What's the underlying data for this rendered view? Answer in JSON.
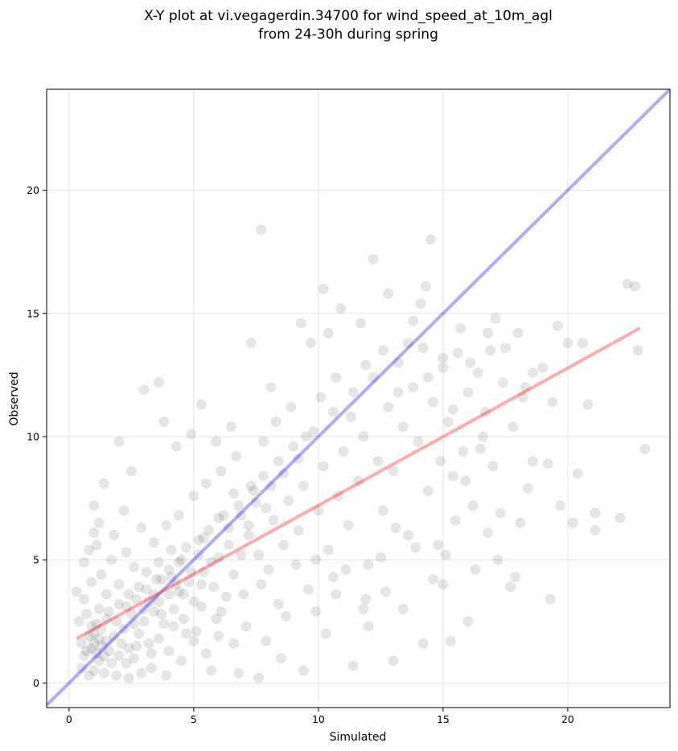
{
  "chart_data": {
    "type": "scatter",
    "title_lines": [
      "X-Y plot at vi.vegagerdin.34700 for wind_speed_at_10m_agl",
      "from 24-30h during spring"
    ],
    "xlabel": "Simulated",
    "ylabel": "Observed",
    "xlim": [
      -0.9,
      24.1
    ],
    "ylim": [
      -1.0,
      24.1
    ],
    "xticks": [
      0,
      5,
      10,
      15,
      20
    ],
    "yticks": [
      0,
      5,
      10,
      15,
      20
    ],
    "grid": true,
    "colors": {
      "points": "#000000",
      "one_to_one": "#0000ff",
      "regression": "#ff0000"
    },
    "points": [
      [
        0.9,
        1.4
      ],
      [
        1.0,
        1.6
      ],
      [
        1.1,
        1.2
      ],
      [
        1.2,
        1.8
      ],
      [
        1.3,
        1.5
      ],
      [
        1.0,
        2.0
      ],
      [
        1.4,
        1.1
      ],
      [
        1.5,
        1.7
      ],
      [
        1.2,
        0.9
      ],
      [
        0.8,
        1.9
      ],
      [
        1.1,
        2.4
      ],
      [
        1.6,
        1.3
      ],
      [
        1.3,
        2.2
      ],
      [
        1.7,
        0.8
      ],
      [
        0.7,
        2.8
      ],
      [
        1.5,
        2.6
      ],
      [
        1.8,
        1.9
      ],
      [
        2.0,
        1.1
      ],
      [
        1.9,
        2.5
      ],
      [
        2.1,
        1.6
      ],
      [
        2.2,
        2.2
      ],
      [
        2.4,
        1.4
      ],
      [
        2.5,
        2.8
      ],
      [
        2.3,
        3.1
      ],
      [
        2.6,
        1.0
      ],
      [
        2.8,
        2.0
      ],
      [
        2.7,
        3.4
      ],
      [
        3.0,
        2.5
      ],
      [
        3.2,
        1.6
      ],
      [
        3.1,
        3.8
      ],
      [
        3.4,
        2.9
      ],
      [
        3.5,
        4.2
      ],
      [
        3.3,
        1.2
      ],
      [
        3.6,
        3.3
      ],
      [
        3.8,
        2.4
      ],
      [
        4.0,
        4.6
      ],
      [
        4.2,
        3.0
      ],
      [
        4.1,
        5.4
      ],
      [
        4.4,
        3.7
      ],
      [
        4.6,
        2.6
      ],
      [
        4.5,
        5.0
      ],
      [
        4.8,
        4.1
      ],
      [
        5.0,
        3.3
      ],
      [
        5.2,
        5.8
      ],
      [
        5.1,
        2.1
      ],
      [
        5.4,
        4.5
      ],
      [
        5.6,
        6.2
      ],
      [
        5.8,
        3.9
      ],
      [
        6.0,
        5.1
      ],
      [
        6.2,
        6.8
      ],
      [
        6.1,
        2.9
      ],
      [
        6.4,
        5.6
      ],
      [
        6.6,
        4.4
      ],
      [
        6.8,
        7.2
      ],
      [
        7.0,
        3.6
      ],
      [
        7.2,
        6.0
      ],
      [
        7.4,
        7.8
      ],
      [
        7.6,
        5.2
      ],
      [
        7.8,
        8.4
      ],
      [
        8.0,
        4.6
      ],
      [
        8.2,
        6.6
      ],
      [
        8.4,
        9.0
      ],
      [
        8.6,
        5.6
      ],
      [
        8.8,
        7.4
      ],
      [
        9.0,
        9.6
      ],
      [
        9.2,
        6.2
      ],
      [
        9.4,
        8.0
      ],
      [
        9.6,
        3.8
      ],
      [
        9.8,
        10.2
      ],
      [
        10.0,
        7.0
      ],
      [
        10.2,
        8.8
      ],
      [
        10.4,
        5.4
      ],
      [
        10.6,
        11.0
      ],
      [
        10.8,
        7.6
      ],
      [
        11.0,
        9.4
      ],
      [
        11.2,
        6.4
      ],
      [
        11.4,
        11.8
      ],
      [
        11.6,
        8.2
      ],
      [
        11.8,
        10.0
      ],
      [
        12.0,
        4.8
      ],
      [
        12.2,
        12.4
      ],
      [
        12.4,
        9.0
      ],
      [
        12.6,
        7.0
      ],
      [
        12.8,
        11.2
      ],
      [
        13.0,
        8.6
      ],
      [
        13.2,
        13.0
      ],
      [
        13.4,
        10.4
      ],
      [
        13.6,
        6.0
      ],
      [
        13.8,
        12.0
      ],
      [
        14.0,
        9.8
      ],
      [
        14.2,
        13.6
      ],
      [
        14.4,
        7.8
      ],
      [
        14.6,
        11.4
      ],
      [
        14.8,
        5.6
      ],
      [
        15.0,
        12.8
      ],
      [
        15.2,
        10.6
      ],
      [
        15.4,
        8.4
      ],
      [
        15.6,
        13.4
      ],
      [
        15.8,
        9.4
      ],
      [
        16.0,
        11.8
      ],
      [
        16.2,
        7.2
      ],
      [
        16.4,
        12.6
      ],
      [
        16.6,
        10.0
      ],
      [
        16.8,
        14.2
      ],
      [
        17.0,
        8.8
      ],
      [
        17.4,
        12.2
      ],
      [
        17.8,
        10.4
      ],
      [
        18.2,
        11.6
      ],
      [
        18.6,
        9.0
      ],
      [
        19.0,
        12.8
      ],
      [
        0.5,
        0.6
      ],
      [
        0.6,
        1.1
      ],
      [
        0.8,
        0.3
      ],
      [
        1.0,
        0.5
      ],
      [
        1.4,
        0.4
      ],
      [
        1.9,
        0.3
      ],
      [
        2.4,
        0.2
      ],
      [
        2.9,
        0.4
      ],
      [
        3.3,
        0.6
      ],
      [
        3.9,
        0.3
      ],
      [
        1.5,
        3.6
      ],
      [
        1.3,
        4.4
      ],
      [
        1.7,
        5.0
      ],
      [
        1.1,
        5.6
      ],
      [
        2.0,
        4.0
      ],
      [
        2.3,
        5.3
      ],
      [
        1.8,
        6.0
      ],
      [
        2.6,
        4.7
      ],
      [
        2.9,
        6.3
      ],
      [
        2.2,
        7.0
      ],
      [
        0.6,
        3.4
      ],
      [
        0.9,
        4.1
      ],
      [
        1.2,
        6.5
      ],
      [
        1.0,
        7.2
      ],
      [
        1.4,
        8.1
      ],
      [
        2.5,
        8.6
      ],
      [
        2.0,
        9.8
      ],
      [
        3.0,
        11.9
      ],
      [
        3.6,
        12.2
      ],
      [
        3.8,
        10.6
      ],
      [
        4.3,
        9.6
      ],
      [
        4.9,
        10.1
      ],
      [
        5.3,
        11.3
      ],
      [
        5.9,
        9.8
      ],
      [
        6.5,
        10.4
      ],
      [
        7.7,
        18.4
      ],
      [
        9.3,
        14.6
      ],
      [
        10.2,
        16.0
      ],
      [
        10.9,
        15.2
      ],
      [
        12.2,
        17.2
      ],
      [
        12.8,
        15.8
      ],
      [
        13.6,
        13.8
      ],
      [
        14.5,
        18.0
      ],
      [
        14.3,
        16.1
      ],
      [
        14.1,
        15.4
      ],
      [
        9.7,
        13.8
      ],
      [
        10.4,
        14.2
      ],
      [
        11.7,
        14.6
      ],
      [
        8.1,
        12.0
      ],
      [
        7.3,
        13.8
      ],
      [
        22.4,
        16.2
      ],
      [
        22.7,
        16.1
      ],
      [
        22.8,
        13.5
      ],
      [
        23.1,
        9.5
      ],
      [
        20.4,
        8.5
      ],
      [
        20.2,
        6.5
      ],
      [
        21.1,
        6.9
      ],
      [
        21.1,
        6.2
      ],
      [
        22.1,
        6.7
      ],
      [
        19.3,
        3.4
      ],
      [
        19.7,
        7.2
      ],
      [
        20.0,
        13.8
      ],
      [
        20.6,
        13.8
      ],
      [
        20.8,
        11.3
      ],
      [
        19.6,
        14.5
      ],
      [
        19.4,
        11.4
      ],
      [
        18.6,
        12.6
      ],
      [
        19.2,
        8.9
      ],
      [
        16.0,
        2.5
      ],
      [
        15.3,
        1.7
      ],
      [
        14.2,
        1.6
      ],
      [
        13.0,
        0.9
      ],
      [
        11.4,
        0.7
      ],
      [
        12.0,
        2.3
      ],
      [
        10.3,
        2.0
      ],
      [
        9.4,
        0.5
      ],
      [
        8.5,
        1.0
      ],
      [
        7.6,
        0.2
      ],
      [
        6.8,
        0.4
      ],
      [
        5.7,
        0.5
      ],
      [
        3.6,
        1.8
      ],
      [
        4.0,
        1.3
      ],
      [
        4.5,
        0.9
      ],
      [
        5.0,
        1.7
      ],
      [
        5.5,
        1.2
      ],
      [
        6.0,
        1.9
      ],
      [
        6.6,
        1.6
      ],
      [
        7.1,
        2.3
      ],
      [
        7.9,
        1.7
      ],
      [
        8.7,
        2.7
      ],
      [
        9.9,
        2.9
      ],
      [
        10.7,
        3.6
      ],
      [
        11.9,
        3.4
      ],
      [
        12.7,
        3.7
      ],
      [
        13.4,
        3.0
      ],
      [
        14.6,
        4.2
      ],
      [
        15.1,
        5.2
      ],
      [
        16.3,
        4.6
      ],
      [
        17.2,
        5.0
      ],
      [
        17.7,
        3.9
      ],
      [
        17.9,
        4.3
      ],
      [
        18.4,
        7.9
      ],
      [
        18.1,
        6.5
      ],
      [
        17.3,
        6.9
      ],
      [
        16.8,
        6.1
      ],
      [
        16.5,
        9.5
      ],
      [
        15.9,
        8.2
      ],
      [
        15.5,
        6.6
      ],
      [
        15.0,
        4.0
      ],
      [
        14.9,
        9.0
      ],
      [
        13.9,
        5.5
      ],
      [
        13.1,
        6.3
      ],
      [
        12.5,
        5.1
      ],
      [
        11.8,
        3.0
      ],
      [
        11.1,
        4.6
      ],
      [
        10.6,
        4.3
      ],
      [
        9.9,
        5.0
      ],
      [
        9.1,
        4.8
      ],
      [
        8.4,
        3.2
      ],
      [
        7.7,
        4.0
      ],
      [
        6.9,
        5.2
      ],
      [
        6.3,
        3.5
      ],
      [
        5.9,
        2.6
      ],
      [
        5.3,
        3.1
      ],
      [
        4.7,
        2.0
      ],
      [
        4.2,
        2.3
      ],
      [
        3.7,
        2.8
      ],
      [
        3.2,
        3.3
      ],
      [
        2.7,
        1.5
      ],
      [
        2.3,
        0.8
      ],
      [
        1.6,
        2.9
      ],
      [
        1.2,
        3.0
      ],
      [
        0.9,
        2.3
      ],
      [
        0.7,
        1.3
      ],
      [
        0.5,
        1.6
      ],
      [
        0.4,
        2.5
      ],
      [
        0.3,
        3.7
      ],
      [
        0.6,
        4.9
      ],
      [
        0.8,
        5.4
      ],
      [
        1.0,
        6.1
      ],
      [
        3.4,
        5.7
      ],
      [
        3.9,
        6.4
      ],
      [
        4.4,
        6.8
      ],
      [
        5.0,
        7.6
      ],
      [
        5.5,
        8.1
      ],
      [
        6.1,
        8.6
      ],
      [
        6.7,
        9.2
      ],
      [
        7.3,
        8.0
      ],
      [
        7.8,
        9.8
      ],
      [
        8.3,
        10.6
      ],
      [
        8.9,
        11.2
      ],
      [
        9.5,
        10.0
      ],
      [
        10.1,
        11.6
      ],
      [
        10.7,
        12.4
      ],
      [
        11.3,
        10.8
      ],
      [
        11.9,
        12.9
      ],
      [
        12.6,
        13.5
      ],
      [
        13.2,
        11.8
      ],
      [
        13.8,
        14.7
      ],
      [
        14.4,
        12.4
      ],
      [
        15.0,
        13.2
      ],
      [
        15.7,
        14.4
      ],
      [
        16.1,
        13.0
      ],
      [
        16.9,
        13.5
      ],
      [
        17.1,
        14.8
      ],
      [
        17.5,
        13.6
      ],
      [
        18.0,
        14.2
      ],
      [
        18.3,
        12.0
      ],
      [
        16.7,
        11.0
      ],
      [
        15.4,
        11.1
      ],
      [
        4.6,
        3.6
      ],
      [
        4.3,
        4.0
      ],
      [
        5.7,
        4.9
      ],
      [
        5.2,
        5.2
      ],
      [
        6.4,
        6.3
      ],
      [
        6.9,
        6.8
      ],
      [
        7.5,
        7.3
      ],
      [
        8.1,
        8.0
      ],
      [
        8.6,
        8.5
      ],
      [
        9.2,
        9.1
      ],
      [
        3.1,
        4.5
      ],
      [
        2.8,
        3.9
      ],
      [
        3.6,
        4.9
      ],
      [
        4.1,
        4.3
      ],
      [
        4.7,
        5.5
      ],
      [
        5.4,
        5.9
      ],
      [
        6.0,
        6.7
      ],
      [
        6.6,
        7.7
      ],
      [
        7.2,
        6.4
      ],
      [
        7.9,
        7.1
      ],
      [
        2.0,
        3.2
      ],
      [
        2.4,
        3.6
      ],
      [
        2.6,
        2.4
      ],
      [
        3.0,
        3.0
      ],
      [
        3.4,
        3.6
      ],
      [
        3.7,
        4.2
      ],
      [
        4.0,
        3.6
      ],
      [
        4.4,
        4.9
      ],
      [
        4.9,
        4.5
      ],
      [
        5.3,
        4.0
      ]
    ],
    "one_to_one": {
      "x": [
        -0.9,
        24.1
      ],
      "y": [
        -0.9,
        24.1
      ]
    },
    "regression": {
      "x": [
        0.3,
        22.9
      ],
      "y": [
        1.8,
        14.4
      ]
    }
  }
}
